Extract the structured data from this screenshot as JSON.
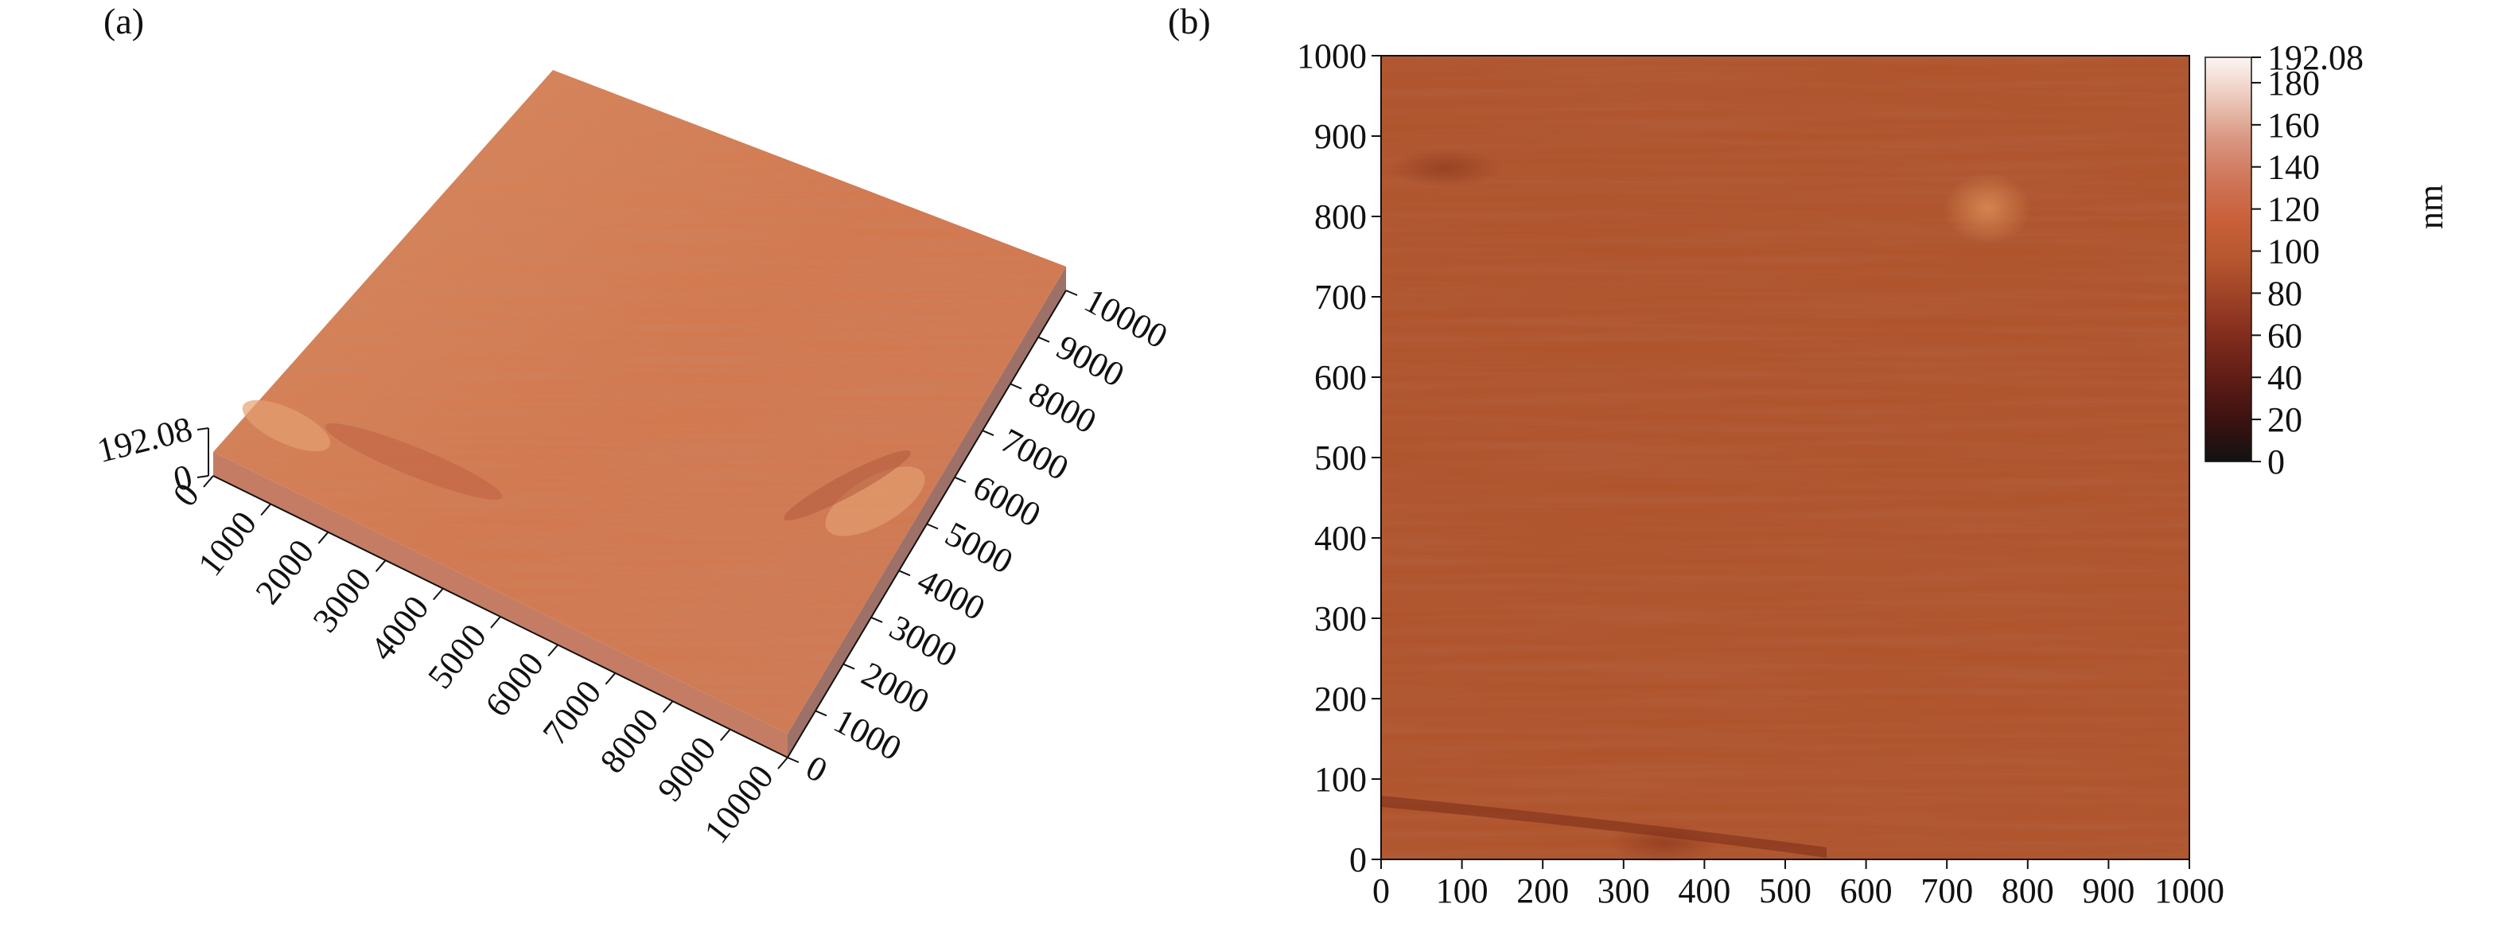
{
  "figure": {
    "panel_a_label": "(a)",
    "panel_b_label": "(b)"
  },
  "chart_data": [
    {
      "type": "heatmap",
      "view": "3d-surface",
      "panel": "(a)",
      "title": "",
      "x_ticks": [
        "0",
        "1000",
        "2000",
        "3000",
        "4000",
        "5000",
        "6000",
        "7000",
        "8000",
        "9000",
        "10000"
      ],
      "y_ticks": [
        "0",
        "1000",
        "2000",
        "3000",
        "4000",
        "5000",
        "6000",
        "7000",
        "8000",
        "9000",
        "10000"
      ],
      "z_ticks": [
        "0",
        "192.08"
      ],
      "xlim": [
        0,
        10000
      ],
      "ylim": [
        0,
        10000
      ],
      "zlim": [
        0,
        192.08
      ],
      "surface_color": "#d4784e",
      "side_color": "#c67a60"
    },
    {
      "type": "heatmap",
      "view": "2d-map",
      "panel": "(b)",
      "title": "",
      "x_ticks": [
        "0",
        "100",
        "200",
        "300",
        "400",
        "500",
        "600",
        "700",
        "800",
        "900",
        "1000"
      ],
      "y_ticks": [
        "0",
        "100",
        "200",
        "300",
        "400",
        "500",
        "600",
        "700",
        "800",
        "900",
        "1000"
      ],
      "xlim": [
        0,
        1000
      ],
      "ylim": [
        0,
        1000
      ],
      "colorbar": {
        "label": "nm",
        "ticks": [
          "0",
          "20",
          "40",
          "60",
          "80",
          "100",
          "120",
          "140",
          "160",
          "180",
          "192.08"
        ],
        "range": [
          0,
          192.08
        ],
        "colormap": [
          "#121212",
          "#3a1210",
          "#5e1c16",
          "#7e2a1c",
          "#9c4026",
          "#b6572f",
          "#c9603a",
          "#cf7659",
          "#d99782",
          "#ecc9bb",
          "#fbf5f2"
        ]
      },
      "map_base_color": "#b0542c",
      "features": [
        {
          "x": 750,
          "y": 810,
          "value": 130
        },
        {
          "x": 80,
          "y": 860,
          "value": 85
        },
        {
          "x": 350,
          "y": 20,
          "value": 60
        }
      ]
    }
  ]
}
